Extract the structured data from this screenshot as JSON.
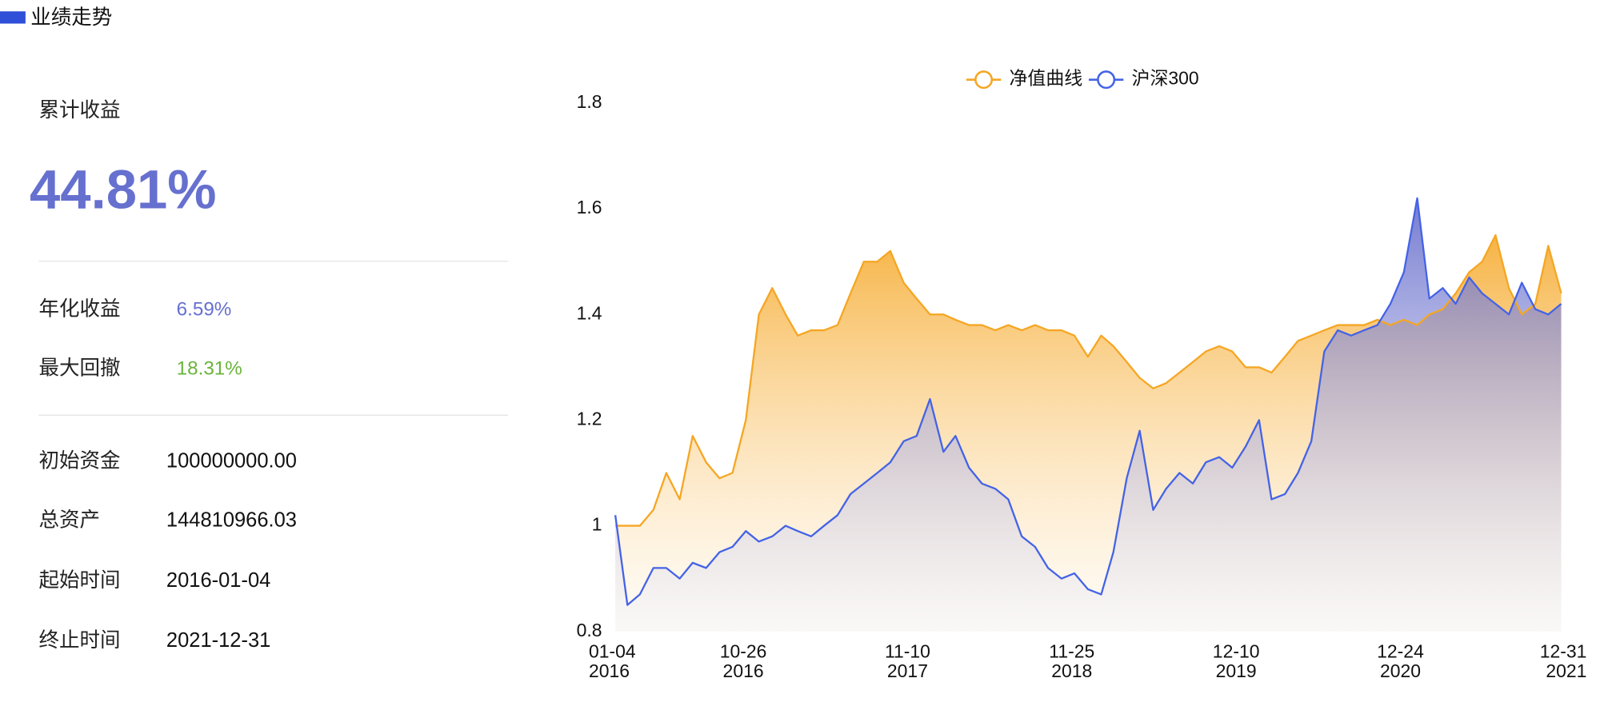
{
  "header": {
    "title": "业绩走势"
  },
  "summary": {
    "total_return": {
      "label": "累计收益",
      "value": "44.81%"
    },
    "metrics": [
      {
        "label": "年化收益",
        "value": "6.59%"
      },
      {
        "label": "最大回撤",
        "value": "18.31%"
      }
    ],
    "details": [
      {
        "label": "初始资金",
        "value": "100000000.00"
      },
      {
        "label": "总资产",
        "value": "144810966.03"
      },
      {
        "label": "起始时间",
        "value": "2016-01-04"
      },
      {
        "label": "终止时间",
        "value": "2021-12-31"
      }
    ]
  },
  "chart_data": {
    "type": "line",
    "legend": "top",
    "grid": false,
    "x": [
      "2016-01-04",
      "2016-02-01",
      "2016-03-01",
      "2016-04-01",
      "2016-05-01",
      "2016-06-01",
      "2016-07-01",
      "2016-08-01",
      "2016-09-01",
      "2016-10-01",
      "2016-11-01",
      "2016-12-01",
      "2017-01-01",
      "2017-02-01",
      "2017-03-01",
      "2017-04-01",
      "2017-05-01",
      "2017-06-01",
      "2017-07-01",
      "2017-08-01",
      "2017-09-01",
      "2017-10-01",
      "2017-11-01",
      "2017-12-01",
      "2018-01-01",
      "2018-02-01",
      "2018-03-01",
      "2018-04-01",
      "2018-05-01",
      "2018-06-01",
      "2018-07-01",
      "2018-08-01",
      "2018-09-01",
      "2018-10-01",
      "2018-11-01",
      "2018-12-01",
      "2019-01-01",
      "2019-02-01",
      "2019-03-01",
      "2019-04-01",
      "2019-05-01",
      "2019-06-01",
      "2019-07-01",
      "2019-08-01",
      "2019-09-01",
      "2019-10-01",
      "2019-11-01",
      "2019-12-01",
      "2020-01-01",
      "2020-02-01",
      "2020-03-01",
      "2020-04-01",
      "2020-05-01",
      "2020-06-01",
      "2020-07-01",
      "2020-08-01",
      "2020-09-01",
      "2020-10-01",
      "2020-11-01",
      "2020-12-01",
      "2021-01-01",
      "2021-02-01",
      "2021-03-01",
      "2021-04-01",
      "2021-05-01",
      "2021-06-01",
      "2021-07-01",
      "2021-08-01",
      "2021-09-01",
      "2021-10-01",
      "2021-11-01",
      "2021-12-01",
      "2021-12-31"
    ],
    "series": [
      {
        "name": "净值曲线",
        "color": "#f5a623",
        "values": [
          1.0,
          1.0,
          1.0,
          1.03,
          1.1,
          1.05,
          1.17,
          1.12,
          1.09,
          1.1,
          1.2,
          1.4,
          1.45,
          1.4,
          1.36,
          1.37,
          1.37,
          1.38,
          1.44,
          1.5,
          1.5,
          1.52,
          1.46,
          1.43,
          1.4,
          1.4,
          1.39,
          1.38,
          1.38,
          1.37,
          1.38,
          1.37,
          1.38,
          1.37,
          1.37,
          1.36,
          1.32,
          1.36,
          1.34,
          1.31,
          1.28,
          1.26,
          1.27,
          1.29,
          1.31,
          1.33,
          1.34,
          1.33,
          1.3,
          1.3,
          1.29,
          1.32,
          1.35,
          1.36,
          1.37,
          1.38,
          1.38,
          1.38,
          1.39,
          1.38,
          1.39,
          1.38,
          1.4,
          1.41,
          1.44,
          1.48,
          1.5,
          1.55,
          1.45,
          1.4,
          1.42,
          1.53,
          1.44
        ]
      },
      {
        "name": "沪深300",
        "color": "#4463e6",
        "values": [
          1.02,
          0.85,
          0.87,
          0.92,
          0.92,
          0.9,
          0.93,
          0.92,
          0.95,
          0.96,
          0.99,
          0.97,
          0.98,
          1.0,
          0.99,
          0.98,
          1.0,
          1.02,
          1.06,
          1.08,
          1.1,
          1.12,
          1.16,
          1.17,
          1.24,
          1.14,
          1.17,
          1.11,
          1.08,
          1.07,
          1.05,
          0.98,
          0.96,
          0.92,
          0.9,
          0.91,
          0.88,
          0.87,
          0.95,
          1.09,
          1.18,
          1.03,
          1.07,
          1.1,
          1.08,
          1.12,
          1.13,
          1.11,
          1.15,
          1.2,
          1.05,
          1.06,
          1.1,
          1.16,
          1.33,
          1.37,
          1.36,
          1.37,
          1.38,
          1.42,
          1.48,
          1.62,
          1.43,
          1.45,
          1.42,
          1.47,
          1.44,
          1.42,
          1.4,
          1.46,
          1.41,
          1.4,
          1.42
        ]
      }
    ],
    "xlim": [
      "2016-01-04",
      "2021-12-31"
    ],
    "xticks": [
      {
        "value": "2016-01-04",
        "label": [
          "01-04",
          "2016"
        ]
      },
      {
        "value": "2016-10-26",
        "label": [
          "10-26",
          "2016"
        ]
      },
      {
        "value": "2017-11-10",
        "label": [
          "11-10",
          "2017"
        ]
      },
      {
        "value": "2018-11-25",
        "label": [
          "11-25",
          "2018"
        ]
      },
      {
        "value": "2019-12-10",
        "label": [
          "12-10",
          "2019"
        ]
      },
      {
        "value": "2020-12-24",
        "label": [
          "12-24",
          "2020"
        ]
      },
      {
        "value": "2021-12-31",
        "label": [
          "12-31",
          "2021"
        ]
      }
    ],
    "ylim": [
      0.8,
      1.8
    ],
    "yticks": [
      0.8,
      1,
      1.2,
      1.4,
      1.6,
      1.8
    ]
  }
}
